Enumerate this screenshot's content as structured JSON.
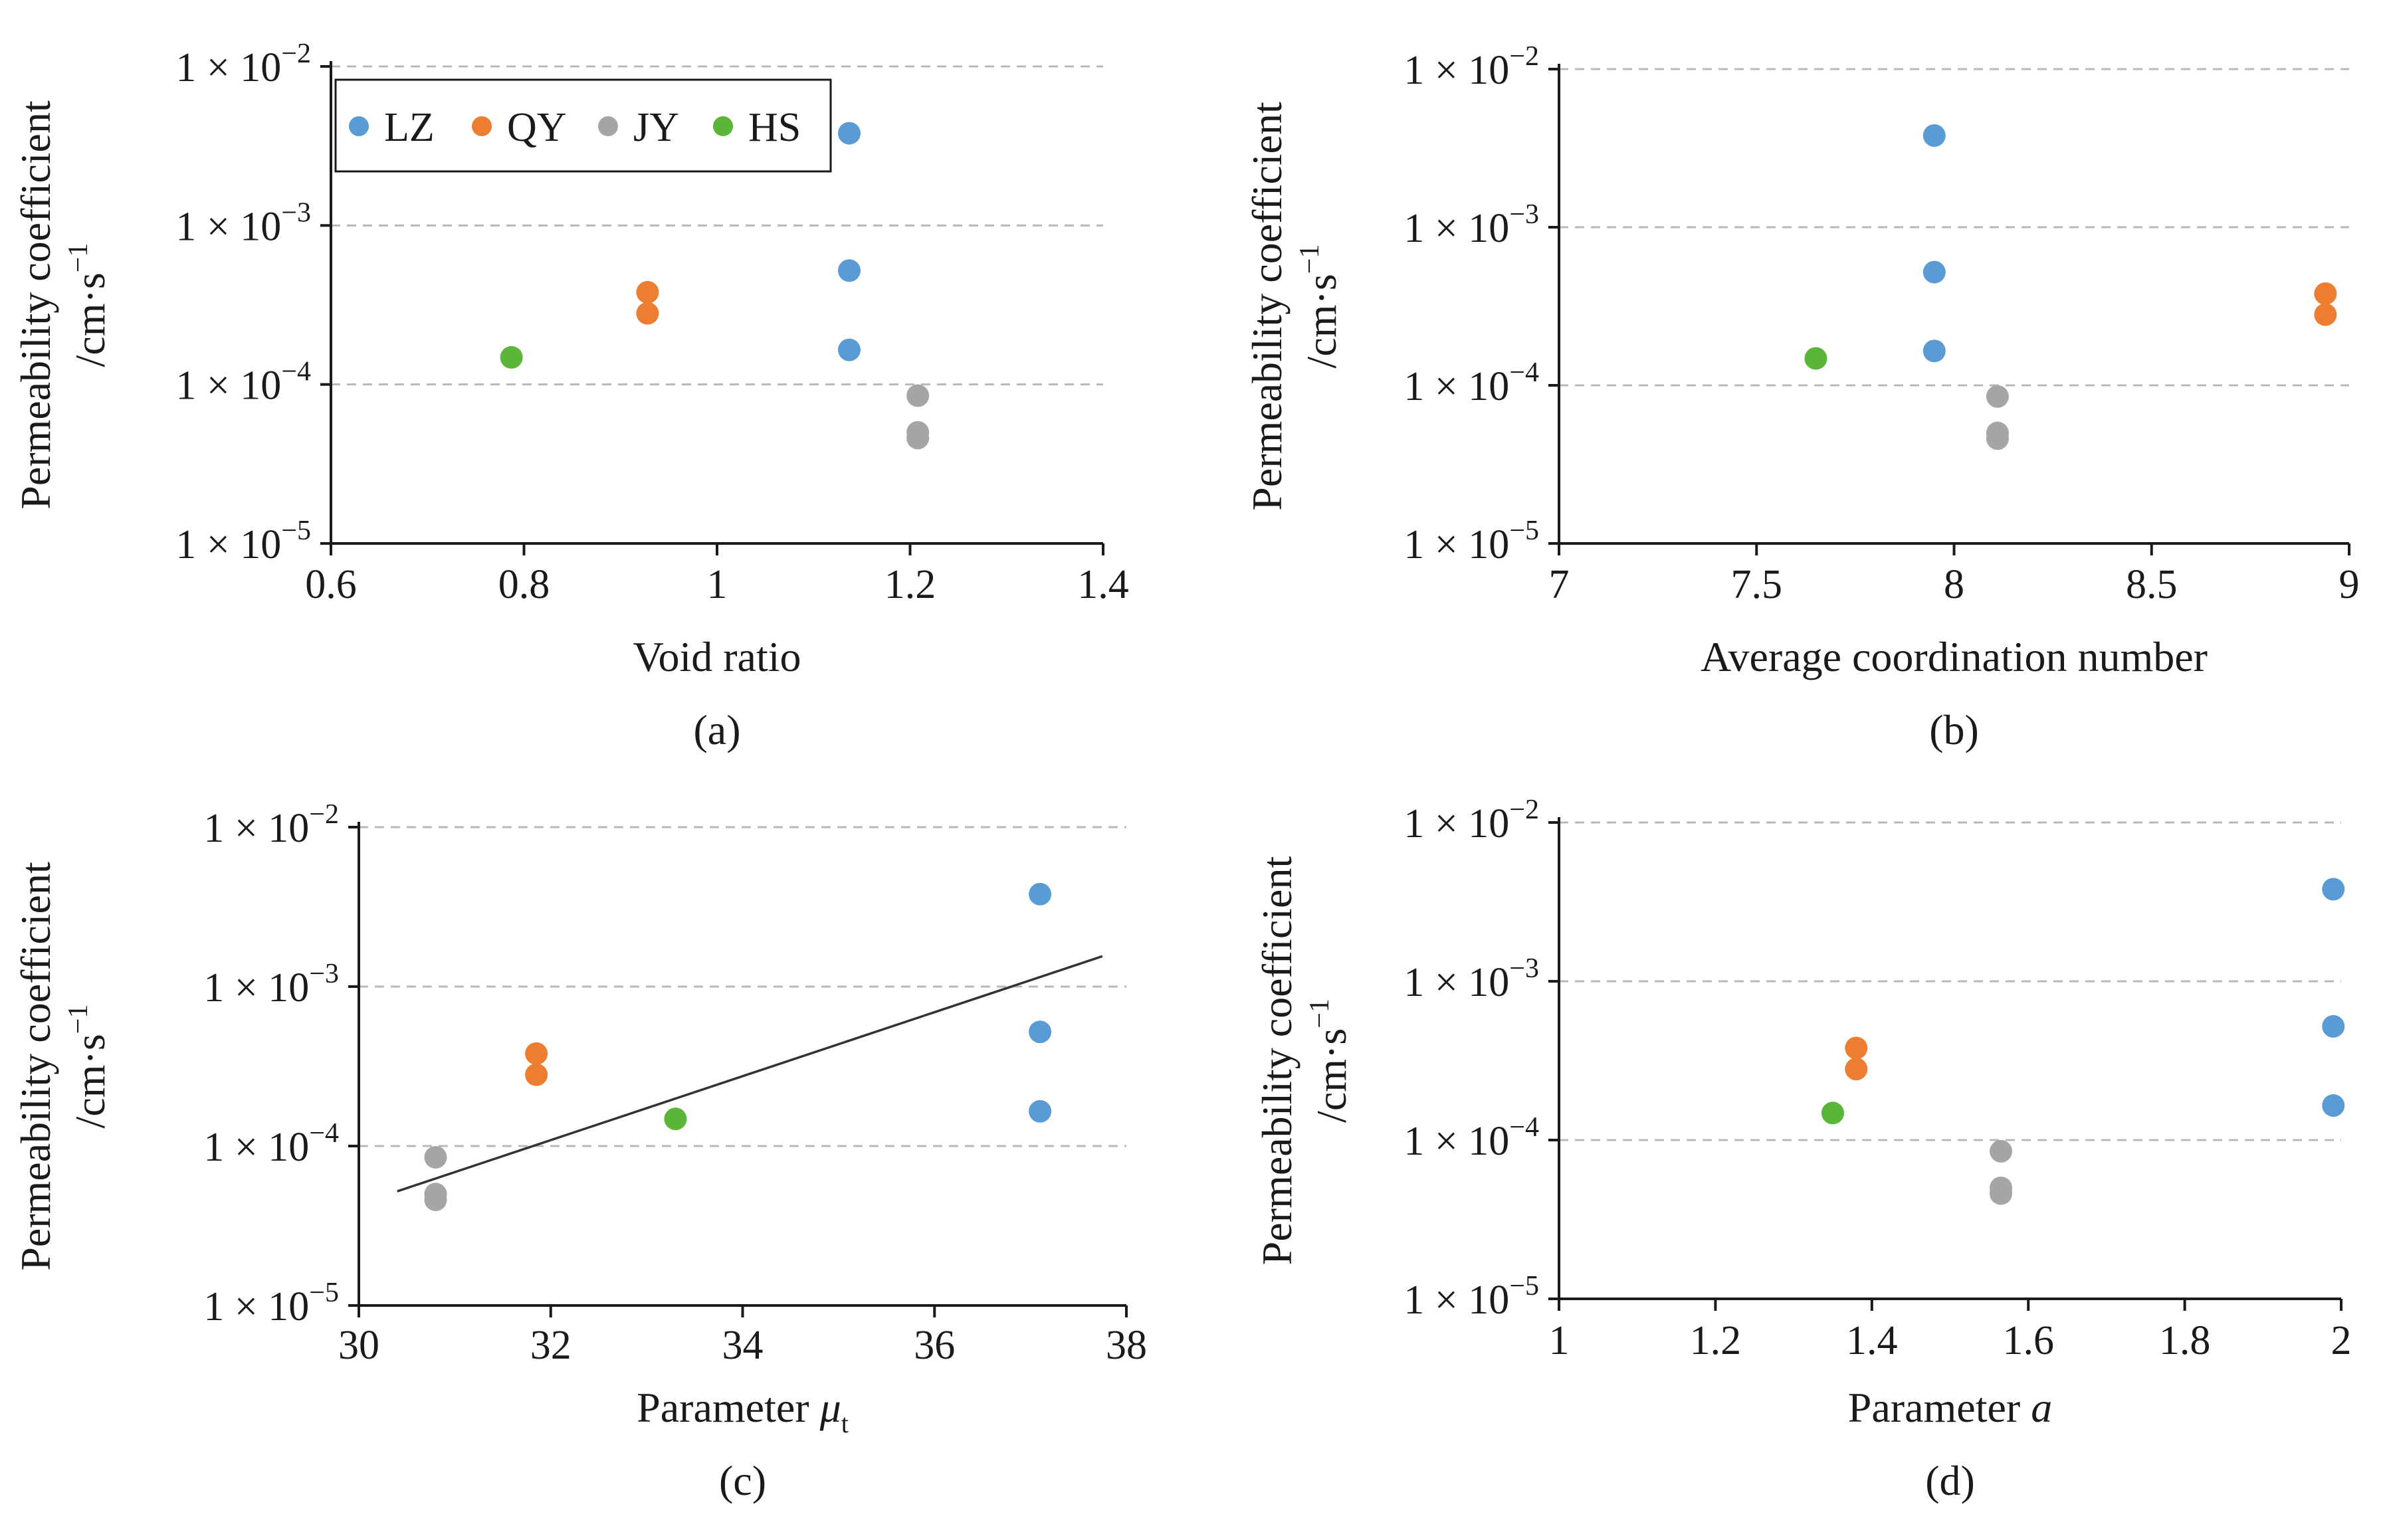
{
  "colors": {
    "LZ": "#5b9bd5",
    "QY": "#ed7d31",
    "JY": "#a5a5a5",
    "HS": "#5bb539",
    "fit_line": "#333333"
  },
  "legend": {
    "entries": [
      "LZ",
      "QY",
      "JY",
      "HS"
    ],
    "placement": "top-left inside panel (a)"
  },
  "chart_data": [
    {
      "type": "scatter",
      "panel": "a",
      "caption": "(a)",
      "xlabel": "Void ratio",
      "ylabel_line1": "Permeability coefficient",
      "ylabel_unit": "/cm·s",
      "ylabel_unit_exp": "−1",
      "xscale": "linear",
      "yscale": "log",
      "xlim": [
        0.6,
        1.4
      ],
      "ylim": [
        1e-05,
        0.01
      ],
      "xticks": [
        0.6,
        0.8,
        1.0,
        1.2,
        1.4
      ],
      "xtick_labels": [
        "0.6",
        "0.8",
        "1",
        "1.2",
        "1.4"
      ],
      "yticks": [
        1e-05,
        0.0001,
        0.001,
        0.01
      ],
      "ytick_bases": [
        "1 × 10",
        "1 × 10",
        "1 × 10",
        "1 × 10"
      ],
      "ytick_exponents": [
        "−5",
        "−4",
        "−3",
        "−2"
      ],
      "grid": "horizontal dashed",
      "has_legend": true,
      "series": [
        {
          "name": "LZ",
          "x": [
            1.137,
            1.137,
            1.137
          ],
          "y": [
            0.0038,
            0.00052,
            0.000165
          ]
        },
        {
          "name": "QY",
          "x": [
            0.928,
            0.928
          ],
          "y": [
            0.00038,
            0.00028
          ]
        },
        {
          "name": "JY",
          "x": [
            1.208,
            1.208,
            1.208
          ],
          "y": [
            8.5e-05,
            5e-05,
            4.6e-05
          ]
        },
        {
          "name": "HS",
          "x": [
            0.787
          ],
          "y": [
            0.000148
          ]
        }
      ]
    },
    {
      "type": "scatter",
      "panel": "b",
      "caption": "(b)",
      "xlabel": "Average coordination number",
      "ylabel_line1": "Permeability coefficient",
      "ylabel_unit": "/cm·s",
      "ylabel_unit_exp": "−1",
      "xscale": "linear",
      "yscale": "log",
      "xlim": [
        7,
        9
      ],
      "ylim": [
        1e-05,
        0.01
      ],
      "xticks": [
        7,
        7.5,
        8,
        8.5,
        9
      ],
      "xtick_labels": [
        "7",
        "7.5",
        "8",
        "8.5",
        "9"
      ],
      "yticks": [
        1e-05,
        0.0001,
        0.001,
        0.01
      ],
      "ytick_bases": [
        "1 × 10",
        "1 × 10",
        "1 × 10",
        "1 × 10"
      ],
      "ytick_exponents": [
        "−5",
        "−4",
        "−3",
        "−2"
      ],
      "grid": "horizontal dashed",
      "has_legend": false,
      "series": [
        {
          "name": "LZ",
          "x": [
            7.95,
            7.95,
            7.95
          ],
          "y": [
            0.0038,
            0.00052,
            0.000165
          ]
        },
        {
          "name": "QY",
          "x": [
            8.94,
            8.94
          ],
          "y": [
            0.00038,
            0.00028
          ]
        },
        {
          "name": "JY",
          "x": [
            8.11,
            8.11,
            8.11
          ],
          "y": [
            8.5e-05,
            5e-05,
            4.6e-05
          ]
        },
        {
          "name": "HS",
          "x": [
            7.65
          ],
          "y": [
            0.000148
          ]
        }
      ]
    },
    {
      "type": "scatter",
      "panel": "c",
      "caption": "(c)",
      "xlabel": "Parameter ",
      "xlabel_symbol": "μ",
      "xlabel_subscript": "t",
      "ylabel_line1": "Permeability coefficient",
      "ylabel_unit": "/cm·s",
      "ylabel_unit_exp": "−1",
      "xscale": "linear",
      "yscale": "log",
      "xlim": [
        30,
        38
      ],
      "ylim": [
        1e-05,
        0.01
      ],
      "xticks": [
        30,
        32,
        34,
        36,
        38
      ],
      "xtick_labels": [
        "30",
        "32",
        "34",
        "36",
        "38"
      ],
      "yticks": [
        1e-05,
        0.0001,
        0.001,
        0.01
      ],
      "ytick_bases": [
        "1 × 10",
        "1 × 10",
        "1 × 10",
        "1 × 10"
      ],
      "ytick_exponents": [
        "−5",
        "−4",
        "−3",
        "−2"
      ],
      "grid": "horizontal dashed",
      "has_legend": false,
      "trendline": {
        "x": [
          30.4,
          37.75
        ],
        "y": [
          5.2e-05,
          0.00155
        ]
      },
      "series": [
        {
          "name": "LZ",
          "x": [
            37.1,
            37.1,
            37.1
          ],
          "y": [
            0.0038,
            0.00052,
            0.000165
          ]
        },
        {
          "name": "QY",
          "x": [
            31.85,
            31.85
          ],
          "y": [
            0.00038,
            0.00028
          ]
        },
        {
          "name": "JY",
          "x": [
            30.8,
            30.8,
            30.8
          ],
          "y": [
            8.5e-05,
            5e-05,
            4.6e-05
          ]
        },
        {
          "name": "HS",
          "x": [
            33.3
          ],
          "y": [
            0.000148
          ]
        }
      ]
    },
    {
      "type": "scatter",
      "panel": "d",
      "caption": "(d)",
      "xlabel": "Parameter ",
      "xlabel_symbol": "a",
      "ylabel_line1": "Permeability coefficient",
      "ylabel_unit": "/cm·s",
      "ylabel_unit_exp": "−1",
      "xscale": "linear",
      "yscale": "log",
      "xlim": [
        1,
        2
      ],
      "ylim": [
        1e-05,
        0.01
      ],
      "xticks": [
        1,
        1.2,
        1.4,
        1.6,
        1.8,
        2
      ],
      "xtick_labels": [
        "1",
        "1.2",
        "1.4",
        "1.6",
        "1.8",
        "2"
      ],
      "yticks": [
        1e-05,
        0.0001,
        0.001,
        0.01
      ],
      "ytick_bases": [
        "1 × 10",
        "1 × 10",
        "1 × 10",
        "1 × 10"
      ],
      "ytick_exponents": [
        "−5",
        "−4",
        "−3",
        "−2"
      ],
      "grid": "horizontal dashed",
      "has_legend": false,
      "series": [
        {
          "name": "LZ",
          "x": [
            1.99,
            1.99,
            1.99
          ],
          "y": [
            0.0038,
            0.00052,
            0.000165
          ]
        },
        {
          "name": "QY",
          "x": [
            1.38,
            1.38
          ],
          "y": [
            0.00038,
            0.00028
          ]
        },
        {
          "name": "JY",
          "x": [
            1.565,
            1.565,
            1.565
          ],
          "y": [
            8.5e-05,
            5e-05,
            4.6e-05
          ]
        },
        {
          "name": "HS",
          "x": [
            1.35
          ],
          "y": [
            0.000148
          ]
        }
      ]
    }
  ]
}
